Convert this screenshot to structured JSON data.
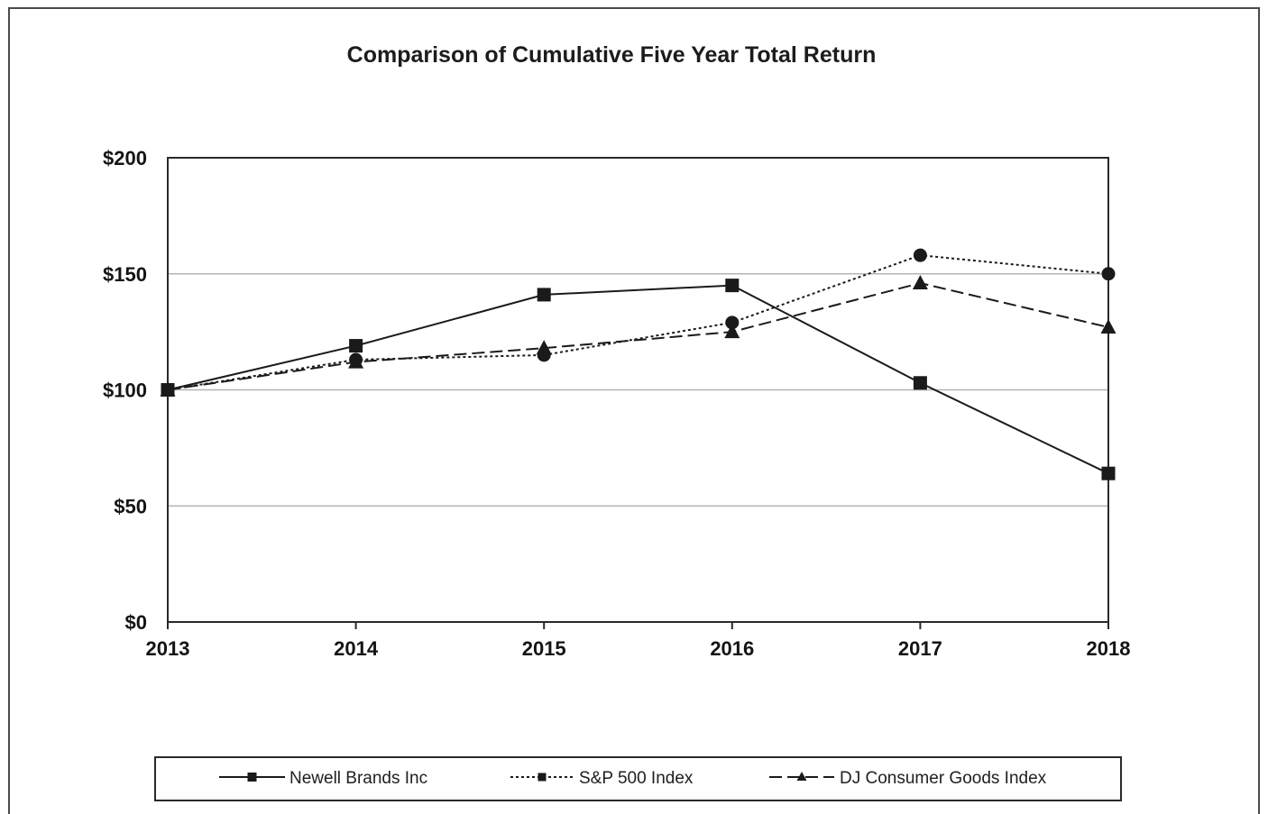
{
  "chart_data": {
    "type": "line",
    "title": "Comparison of Cumulative Five Year Total Return",
    "x": [
      "2013",
      "2014",
      "2015",
      "2016",
      "2017",
      "2018"
    ],
    "ylim": [
      0,
      200
    ],
    "yticks": [
      0,
      50,
      100,
      150,
      200
    ],
    "ytick_labels": [
      "$0",
      "$50",
      "$100",
      "$150",
      "$200"
    ],
    "grid": "horizontal",
    "legend_position": "bottom",
    "series": [
      {
        "name": "Newell Brands Inc",
        "values": [
          100,
          119,
          141,
          145,
          103,
          64
        ],
        "marker": "square",
        "dash": "solid",
        "color": "#1a1a1a"
      },
      {
        "name": "S&P 500 Index",
        "values": [
          100,
          113,
          115,
          129,
          158,
          150
        ],
        "marker": "circle",
        "dash": "dotted",
        "color": "#1a1a1a"
      },
      {
        "name": "DJ Consumer Goods Index",
        "values": [
          100,
          112,
          118,
          125,
          146,
          127
        ],
        "marker": "triangle",
        "dash": "dashed",
        "color": "#1a1a1a"
      }
    ]
  }
}
